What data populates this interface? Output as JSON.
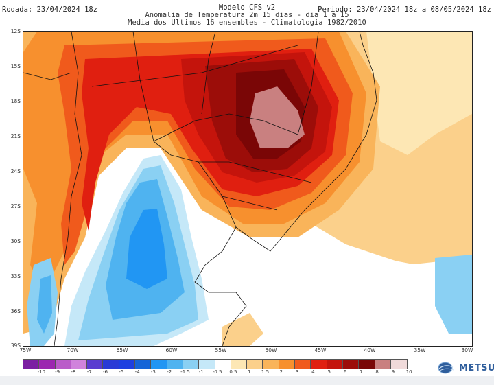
{
  "header": {
    "run_label": "Rodada: 23/04/2024 18z",
    "model": "Modelo CFS v2",
    "period_label": "Periodo: 23/04/2024 18z a 08/05/2024 18z",
    "subtitle": "Anomalia de Temperatura 2m 15 dias - dia 1 a 15",
    "subtitle2": "Media dos Ultimos 16 ensembles - Climatologia 1982/2010"
  },
  "map": {
    "lat_ticks": [
      "12S",
      "15S",
      "18S",
      "21S",
      "24S",
      "27S",
      "30S",
      "33S",
      "36S",
      "39S"
    ],
    "lon_ticks": [
      "75W",
      "70W",
      "65W",
      "60W",
      "55W",
      "50W",
      "45W",
      "40W",
      "35W",
      "30W"
    ]
  },
  "colorbar": {
    "labels": [
      "-10",
      "-9",
      "-8",
      "-7",
      "-6",
      "-5",
      "-4",
      "-3",
      "-2",
      "-1.5",
      "-1",
      "-0.5",
      "0.5",
      "1",
      "1.5",
      "2",
      "3",
      "4",
      "5",
      "6",
      "7",
      "8",
      "9",
      "10"
    ],
    "colors": [
      "#7b1fa2",
      "#9c27b0",
      "#ba5cc9",
      "#d083dc",
      "#5a3bd0",
      "#2a3bd6",
      "#1e40e0",
      "#1565d8",
      "#2196f3",
      "#4fb3f0",
      "#8ad0f3",
      "#c5e8f8",
      "#ffffff",
      "#fde7b4",
      "#fbd08b",
      "#f9b45a",
      "#f7902e",
      "#f05a1c",
      "#e01f10",
      "#c4140c",
      "#9c0d09",
      "#7a0606",
      "#c98080",
      "#f0dada"
    ]
  },
  "logo": {
    "text": "METSUL"
  }
}
